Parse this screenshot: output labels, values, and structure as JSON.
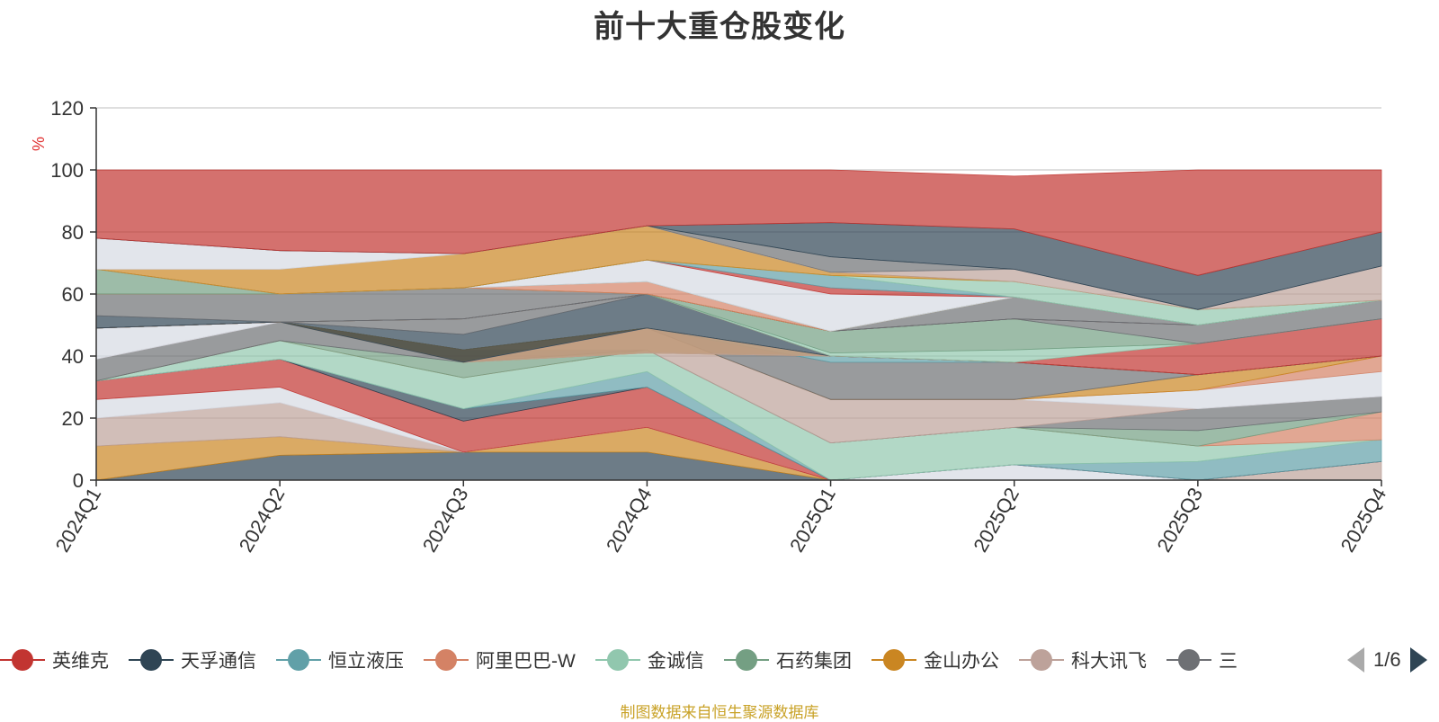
{
  "title": "前十大重仓股变化",
  "source": "制图数据来自恒生聚源数据库",
  "legend": {
    "items": [
      {
        "name": "英维克",
        "color": "#c23531"
      },
      {
        "name": "天孚通信",
        "color": "#2f4554"
      },
      {
        "name": "恒立液压",
        "color": "#61a0a8"
      },
      {
        "name": "阿里巴巴-W",
        "color": "#d48265"
      },
      {
        "name": "金诚信",
        "color": "#91c7ae"
      },
      {
        "name": "石药集团",
        "color": "#749f83"
      },
      {
        "name": "金山办公",
        "color": "#ca8622"
      },
      {
        "name": "科大讯飞",
        "color": "#bda29a"
      },
      {
        "name": "三",
        "color": "#6e7074"
      }
    ],
    "page": "1/6"
  },
  "chart_data": {
    "type": "area",
    "title": "前十大重仓股变化",
    "ylabel": "%",
    "ylim": [
      0,
      120
    ],
    "yticks": [
      0,
      20,
      40,
      60,
      80,
      100,
      120
    ],
    "categories": [
      "2024Q1",
      "2024Q2",
      "2024Q3",
      "2024Q4",
      "2025Q1",
      "2025Q2",
      "2025Q3",
      "2025Q4"
    ],
    "stacked": true,
    "layer_boundaries": [
      {
        "color": "#2f4554",
        "upper": [
          0,
          8,
          9,
          9,
          0,
          0,
          0,
          0
        ]
      },
      {
        "color": "#ca8622",
        "upper": [
          11,
          14,
          9,
          17,
          0,
          0,
          0,
          0
        ]
      },
      {
        "color": "#bda29a",
        "upper": [
          20,
          25,
          9,
          17,
          0,
          0,
          0,
          6
        ]
      },
      {
        "color": "#d6dae3",
        "upper": [
          26,
          30,
          9,
          17,
          0,
          5,
          0,
          6
        ]
      },
      {
        "color": "#c23531",
        "upper": [
          32,
          39,
          19,
          30,
          0,
          5,
          0,
          6
        ]
      },
      {
        "color": "#2f4554",
        "upper": [
          32,
          39,
          23,
          30,
          0,
          5,
          0,
          6
        ]
      },
      {
        "color": "#61a0a8",
        "upper": [
          32,
          39,
          23,
          35,
          0,
          5,
          6,
          13
        ]
      },
      {
        "color": "#91c7ae",
        "upper": [
          32,
          45,
          33,
          42,
          12,
          17,
          11,
          13
        ]
      },
      {
        "color": "#d48265",
        "upper": [
          32,
          45,
          33,
          42,
          12,
          17,
          11,
          22
        ]
      },
      {
        "color": "#749f83",
        "upper": [
          32,
          45,
          38,
          42,
          12,
          17,
          16,
          22
        ]
      },
      {
        "color": "#6e7074",
        "upper": [
          39,
          51,
          42,
          42,
          12,
          17,
          23,
          27
        ]
      },
      {
        "color": "#bda29a",
        "upper": [
          39,
          51,
          42,
          49,
          26,
          26,
          23,
          27
        ]
      },
      {
        "color": "#d6dae3",
        "upper": [
          49,
          51,
          42,
          49,
          26,
          26,
          29,
          35
        ]
      },
      {
        "color": "#d48265",
        "upper": [
          49,
          51,
          42,
          49,
          26,
          26,
          29,
          40
        ]
      },
      {
        "color": "#ca8622",
        "upper": [
          49,
          51,
          42,
          49,
          26,
          26,
          34,
          40
        ]
      },
      {
        "color": "#6e7074",
        "upper": [
          49,
          51,
          42,
          49,
          38,
          38,
          34,
          40
        ]
      },
      {
        "color": "#61a0a8",
        "upper": [
          49,
          51,
          42,
          49,
          40,
          38,
          34,
          40
        ]
      },
      {
        "color": "#ca8622",
        "upper": [
          49,
          51,
          38,
          41,
          40,
          38,
          34,
          40
        ]
      },
      {
        "color": "#bda29a",
        "upper": [
          49,
          51,
          38,
          49,
          40,
          38,
          34,
          40
        ]
      },
      {
        "color": "#2f4554",
        "upper": [
          49,
          51,
          47,
          60,
          40,
          38,
          34,
          40
        ]
      },
      {
        "color": "#6e7074",
        "upper": [
          49,
          51,
          52,
          60,
          40,
          38,
          34,
          40
        ]
      },
      {
        "color": "#c23531",
        "upper": [
          49,
          51,
          52,
          60,
          40,
          38,
          44,
          52
        ]
      },
      {
        "color": "#91c7ae",
        "upper": [
          49,
          51,
          52,
          60,
          41,
          42,
          44,
          52
        ]
      },
      {
        "color": "#749f83",
        "upper": [
          49,
          51,
          52,
          60,
          48,
          52,
          44,
          52
        ]
      },
      {
        "color": "#6e7074",
        "upper": [
          49,
          51,
          52,
          60,
          48,
          52,
          50,
          58
        ]
      },
      {
        "color": "#d48265",
        "upper": [
          49,
          51,
          52,
          60,
          48,
          52,
          50,
          58
        ]
      },
      {
        "color": "#2f4554",
        "upper": [
          53,
          51,
          52,
          60,
          48,
          52,
          50,
          58
        ]
      },
      {
        "color": "#6e7074",
        "upper": [
          60,
          60,
          62,
          60,
          48,
          59,
          50,
          58
        ]
      },
      {
        "color": "#ca8622",
        "upper": [
          60,
          60,
          62,
          60,
          48,
          59,
          50,
          58
        ]
      },
      {
        "color": "#d48265",
        "upper": [
          60,
          60,
          62,
          64,
          48,
          59,
          50,
          58
        ]
      },
      {
        "color": "#749f83",
        "upper": [
          68,
          60,
          62,
          64,
          48,
          59,
          50,
          58
        ]
      },
      {
        "color": "#d6dae3",
        "upper": [
          68,
          60,
          62,
          71,
          60,
          59,
          50,
          58
        ]
      },
      {
        "color": "#c23531",
        "upper": [
          68,
          60,
          62,
          71,
          62,
          59,
          50,
          58
        ]
      },
      {
        "color": "#61a0a8",
        "upper": [
          68,
          60,
          62,
          71,
          66,
          59,
          50,
          58
        ]
      },
      {
        "color": "#91c7ae",
        "upper": [
          68,
          60,
          62,
          71,
          66,
          64,
          55,
          58
        ]
      },
      {
        "color": "#ca8622",
        "upper": [
          68,
          68,
          73,
          82,
          67,
          64,
          55,
          58
        ]
      },
      {
        "color": "#bda29a",
        "upper": [
          68,
          68,
          73,
          82,
          67,
          68,
          55,
          69
        ]
      },
      {
        "color": "#d6dae3",
        "upper": [
          78,
          74,
          73,
          82,
          67,
          68,
          55,
          69
        ]
      },
      {
        "color": "#6e7074",
        "upper": [
          78,
          74,
          73,
          82,
          72,
          68,
          55,
          69
        ]
      },
      {
        "color": "#2f4554",
        "upper": [
          78,
          74,
          73,
          82,
          83,
          81,
          66,
          80
        ]
      },
      {
        "color": "#c23531",
        "upper": [
          100,
          100,
          100,
          100,
          100,
          98,
          100,
          100
        ]
      }
    ]
  }
}
